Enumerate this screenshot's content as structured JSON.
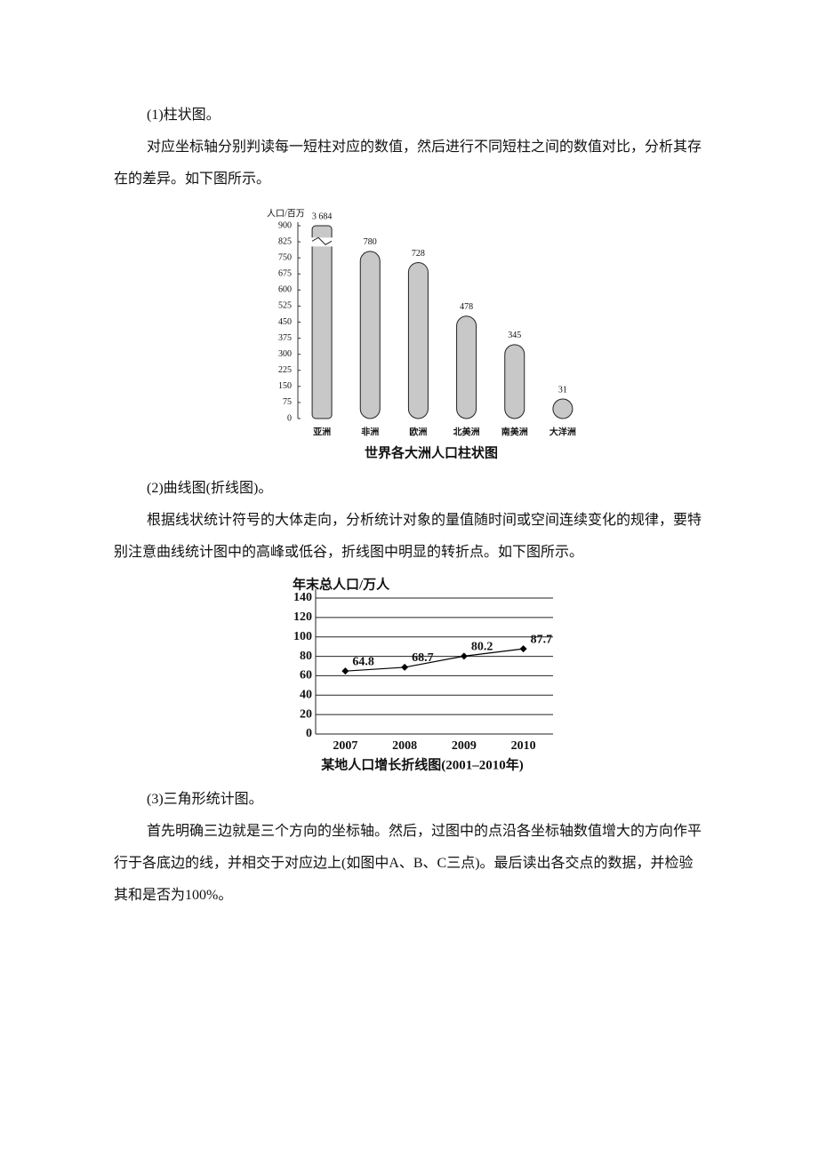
{
  "paragraphs": [
    "(1)柱状图。",
    "对应坐标轴分别判读每一短柱对应的数值，然后进行不同短柱之间的数值对比，分析其存在的差异。如下图所示。",
    "(2)曲线图(折线图)。",
    "根据线状统计符号的大体走向，分析统计对象的量值随时间或空间连续变化的规律，要特别注意曲线统计图中的高峰或低谷，折线图中明显的转折点。如下图所示。",
    "(3)三角形统计图。",
    "首先明确三边就是三个方向的坐标轴。然后，过图中的点沿各坐标轴数值增大的方向作平行于各底边的线，并相交于对应边上(如图中A、B、C三点)。最后读出各交点的数据，并检验其和是否为100%。"
  ],
  "chart_data": [
    {
      "type": "bar",
      "title": "世界各大洲人口柱状图",
      "y_label": "人口/百万",
      "categories": [
        "亚洲",
        "非洲",
        "欧洲",
        "北美洲",
        "南美洲",
        "大洋洲"
      ],
      "values": [
        3684,
        780,
        728,
        478,
        345,
        31
      ],
      "value_labels": [
        "3 684",
        "780",
        "728",
        "478",
        "345",
        "31"
      ],
      "color": "#c8c8c8",
      "ylim": [
        0,
        900
      ],
      "yticks": [
        0,
        75,
        150,
        225,
        300,
        375,
        450,
        525,
        600,
        675,
        750,
        825,
        900
      ]
    },
    {
      "type": "line",
      "title": "某地人口增长折线图(2001–2010年)",
      "y_label": "年末总人口/万人",
      "categories": [
        "2007",
        "2008",
        "2009",
        "2010"
      ],
      "values": [
        64.8,
        68.7,
        80.2,
        87.7
      ],
      "color": "#000000",
      "ylim": [
        0,
        140
      ],
      "yticks": [
        0,
        20,
        40,
        60,
        80,
        100,
        120,
        140
      ],
      "grid": true
    }
  ]
}
